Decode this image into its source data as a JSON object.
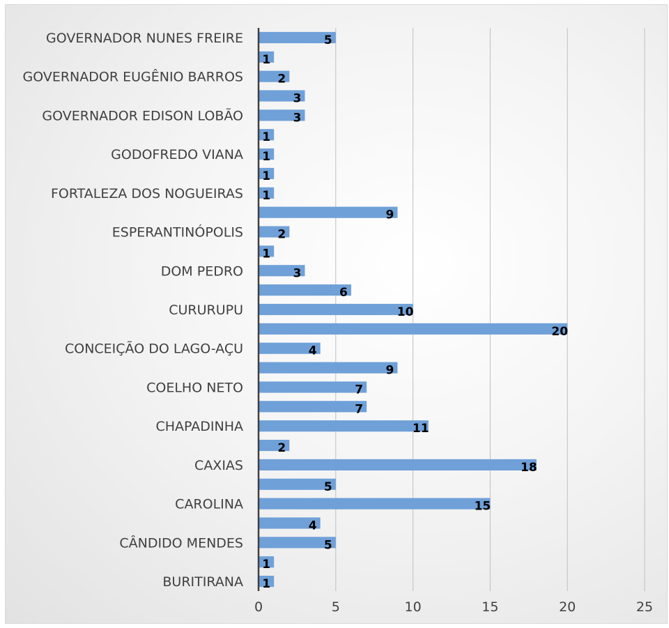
{
  "chart_data": {
    "type": "bar",
    "orientation": "horizontal",
    "categories": [
      "BURITIRANA",
      "",
      "CÂNDIDO MENDES",
      "",
      "CAROLINA",
      "",
      "CAXIAS",
      "",
      "CHAPADINHA",
      "",
      "COELHO NETO",
      "",
      "CONCEIÇÃO DO LAGO-AÇU",
      "",
      "CURURUPU",
      "",
      "DOM PEDRO",
      "",
      "ESPERANTINÓPOLIS",
      "",
      "FORTALEZA DOS NOGUEIRAS",
      "",
      "GODOFREDO VIANA",
      "",
      "GOVERNADOR EDISON LOBÃO",
      "",
      "GOVERNADOR EUGÊNIO BARROS",
      "",
      "GOVERNADOR NUNES FREIRE"
    ],
    "values": [
      1,
      1,
      5,
      4,
      15,
      5,
      18,
      2,
      11,
      7,
      7,
      9,
      4,
      20,
      10,
      6,
      3,
      1,
      2,
      9,
      1,
      1,
      1,
      1,
      3,
      3,
      2,
      1,
      5
    ],
    "xlim": [
      0,
      25
    ],
    "xticks": [
      0,
      5,
      10,
      15,
      20,
      25
    ],
    "gridlines": true,
    "legend": "none",
    "colors": {
      "bar": "#6fa0d8",
      "axis": "#404040",
      "grid": "#bfbfbf"
    }
  }
}
